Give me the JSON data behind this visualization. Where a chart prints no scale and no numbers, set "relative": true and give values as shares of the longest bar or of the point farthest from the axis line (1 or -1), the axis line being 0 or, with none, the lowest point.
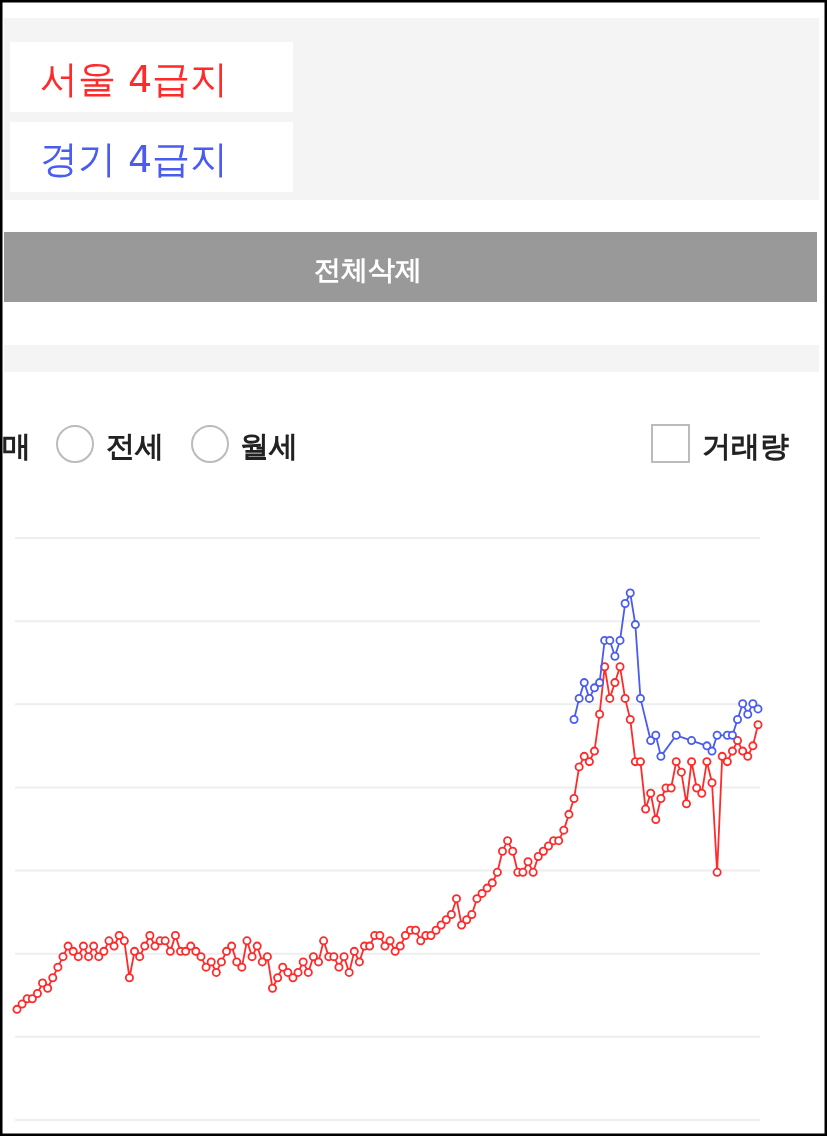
{
  "chart_data": {
    "type": "line",
    "relative": true,
    "grid": "y",
    "marker": "circle",
    "annotations": [
      "전체삭제",
      "매",
      "전세",
      "월세",
      "거래량"
    ],
    "categories": [
      null,
      null,
      null,
      null,
      null,
      null,
      null,
      null,
      null,
      null,
      null,
      null,
      null,
      null,
      null,
      null,
      null,
      null,
      null,
      null,
      null,
      null,
      null,
      null,
      null,
      null,
      null,
      null,
      null,
      null,
      null,
      null,
      null,
      null,
      null,
      null,
      null,
      null,
      null,
      null,
      null,
      null,
      null,
      null,
      null,
      null,
      null,
      null,
      null,
      null,
      null,
      null,
      null,
      null,
      null,
      null,
      null,
      null,
      null,
      null,
      null,
      null,
      null,
      null,
      null,
      null,
      null,
      null,
      null,
      null,
      null,
      null,
      null,
      null,
      null,
      null,
      null,
      null,
      null,
      null,
      null,
      null,
      null,
      null,
      null,
      null,
      null,
      null,
      null,
      null,
      null,
      null,
      null,
      null,
      null,
      null,
      null,
      null,
      null,
      null,
      null,
      null,
      null,
      null,
      null,
      null,
      null,
      null,
      null,
      null,
      null,
      null,
      null,
      null,
      null,
      null,
      null,
      null,
      null,
      null,
      null,
      null,
      null,
      null,
      null,
      null,
      null,
      null,
      null,
      null,
      null,
      null,
      null,
      null,
      null,
      null,
      null,
      null,
      null,
      null,
      null,
      null,
      null,
      null,
      null,
      null
    ],
    "series": [
      {
        "name": "서울 4급지",
        "color": "#ff2a2a",
        "values": [
          0.21,
          0.22,
          0.23,
          0.23,
          0.24,
          0.26,
          0.25,
          0.27,
          0.29,
          0.31,
          0.33,
          0.32,
          0.31,
          0.33,
          0.31,
          0.33,
          0.31,
          0.32,
          0.34,
          0.33,
          0.35,
          0.34,
          0.27,
          0.32,
          0.31,
          0.33,
          0.35,
          0.33,
          0.34,
          0.34,
          0.32,
          0.35,
          0.32,
          0.32,
          0.33,
          0.32,
          0.31,
          0.29,
          0.3,
          0.28,
          0.3,
          0.32,
          0.33,
          0.3,
          0.29,
          0.34,
          0.31,
          0.33,
          0.3,
          0.31,
          0.25,
          0.27,
          0.29,
          0.28,
          0.27,
          0.28,
          0.3,
          0.28,
          0.31,
          0.3,
          0.34,
          0.31,
          0.31,
          0.29,
          0.31,
          0.28,
          0.32,
          0.3,
          0.33,
          0.33,
          0.35,
          0.35,
          0.33,
          0.34,
          0.32,
          0.33,
          0.35,
          0.36,
          0.36,
          0.34,
          0.35,
          0.35,
          0.36,
          0.37,
          0.38,
          0.39,
          0.42,
          0.37,
          0.38,
          0.39,
          0.42,
          0.43,
          0.44,
          0.45,
          0.47,
          0.51,
          0.53,
          0.51,
          0.47,
          0.47,
          0.49,
          0.47,
          0.5,
          0.51,
          0.52,
          0.53,
          0.53,
          0.55,
          0.58,
          0.61,
          0.67,
          0.69,
          0.68,
          0.7,
          0.77,
          0.86,
          0.8,
          0.83,
          0.86,
          0.8,
          0.76,
          0.68,
          0.68,
          0.59,
          0.62,
          0.57,
          0.61,
          0.63,
          0.63,
          0.68,
          0.66,
          0.6,
          0.68,
          0.63,
          0.62,
          0.68,
          0.64,
          0.47,
          0.69,
          0.68,
          0.7,
          0.72,
          0.7,
          0.69,
          0.71,
          0.75
        ]
      },
      {
        "name": "경기 4급지",
        "color": "#4a5cf0",
        "values": [
          null,
          null,
          null,
          null,
          null,
          null,
          null,
          null,
          null,
          null,
          null,
          null,
          null,
          null,
          null,
          null,
          null,
          null,
          null,
          null,
          null,
          null,
          null,
          null,
          null,
          null,
          null,
          null,
          null,
          null,
          null,
          null,
          null,
          null,
          null,
          null,
          null,
          null,
          null,
          null,
          null,
          null,
          null,
          null,
          null,
          null,
          null,
          null,
          null,
          null,
          null,
          null,
          null,
          null,
          null,
          null,
          null,
          null,
          null,
          null,
          null,
          null,
          null,
          null,
          null,
          null,
          null,
          null,
          null,
          null,
          null,
          null,
          null,
          null,
          null,
          null,
          null,
          null,
          null,
          null,
          null,
          null,
          null,
          null,
          null,
          null,
          null,
          null,
          null,
          null,
          null,
          null,
          null,
          null,
          null,
          null,
          null,
          null,
          null,
          null,
          null,
          null,
          null,
          null,
          null,
          null,
          null,
          null,
          null,
          0.76,
          0.8,
          0.83,
          0.8,
          0.82,
          0.83,
          0.91,
          0.91,
          0.88,
          0.91,
          0.98,
          1.0,
          0.94,
          0.8,
          null,
          0.72,
          0.73,
          0.69,
          null,
          null,
          0.73,
          null,
          null,
          0.72,
          null,
          null,
          0.71,
          0.7,
          0.73,
          null,
          0.73,
          0.73,
          0.76,
          0.79,
          0.77,
          0.79,
          0.78
        ]
      }
    ]
  }
}
